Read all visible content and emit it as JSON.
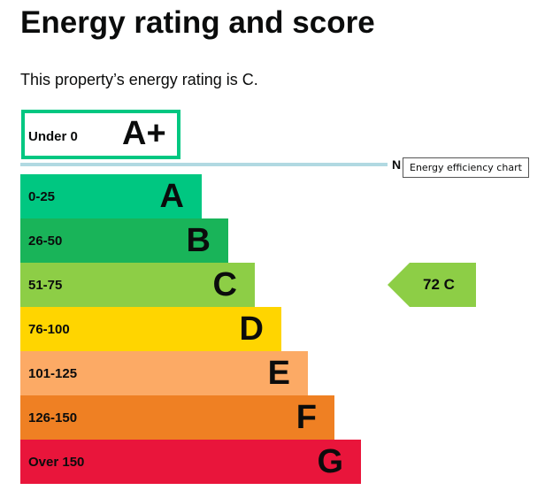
{
  "title": "Energy rating and score",
  "intro": "This property’s energy rating is C.",
  "aplus": {
    "range": "Under 0",
    "letter": "A+",
    "color": "#00c781"
  },
  "net_zero_label": "N",
  "tooltip": "Energy efficiency chart",
  "bands": [
    {
      "range": "0-25",
      "letter": "A",
      "color": "#00c781"
    },
    {
      "range": "26-50",
      "letter": "B",
      "color": "#19b459"
    },
    {
      "range": "51-75",
      "letter": "C",
      "color": "#8dce46"
    },
    {
      "range": "76-100",
      "letter": "D",
      "color": "#ffd500"
    },
    {
      "range": "101-125",
      "letter": "E",
      "color": "#fcaa65"
    },
    {
      "range": "126-150",
      "letter": "F",
      "color": "#ef8023"
    },
    {
      "range": "Over 150",
      "letter": "G",
      "color": "#e9153b"
    }
  ],
  "score": {
    "text": "72  C",
    "value": 72,
    "rating": "C",
    "color": "#8dce46"
  }
}
